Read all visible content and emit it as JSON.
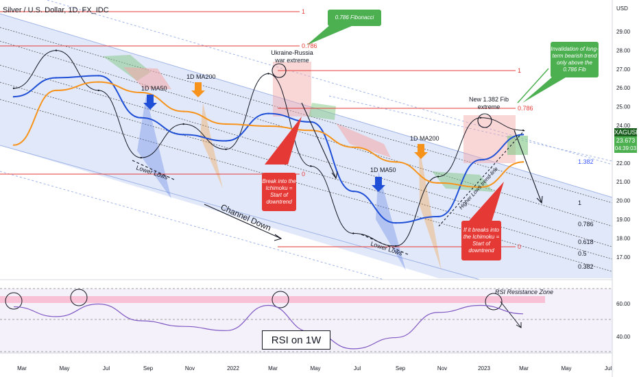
{
  "header": {
    "title": "Silver / U.S. Dollar, 1D, FX_IDC"
  },
  "axis": {
    "currency": "USD",
    "price_ticks": [
      "29.00",
      "28.00",
      "27.00",
      "26.00",
      "25.00",
      "24.00",
      "23.00",
      "22.00",
      "21.00",
      "20.00",
      "19.00",
      "18.00",
      "17.00"
    ],
    "rsi_ticks": [
      "60.00",
      "40.00"
    ],
    "time_ticks": [
      "Mar",
      "May",
      "Jul",
      "Sep",
      "Nov",
      "2022",
      "Mar",
      "May",
      "Jul",
      "Sep",
      "Nov",
      "2023",
      "Mar",
      "May",
      "Jul"
    ]
  },
  "symbol_tag": {
    "symbol": "XAGUSD",
    "price": "23.673",
    "countdown": "04:39:03"
  },
  "fib_right": {
    "f1": "1",
    "f0786": "0.786",
    "f0618": "0.618",
    "f05": "0.5",
    "f0382": "0.382",
    "ext1382": "1.382"
  },
  "fib_upper": {
    "one": "1",
    "f0786": "0.786",
    "f0786b": "0.786",
    "one_b": "1",
    "zero_a": "0",
    "zero_b": "0"
  },
  "annotations": {
    "ma50_a": "1D MA50",
    "ma200_a": "1D MA200",
    "ma50_b": "1D MA50",
    "ma200_b": "1D MA200",
    "ukraine": "Ukraine-Russia\nwar extreme",
    "fib_ext": "New 1.382 Fib\nextreme",
    "lower_lows_a": "Lower Lows",
    "lower_lows_b": "Lower Lows",
    "channel_down": "Channel Down",
    "higher_lows": "Higher Lows trend-line",
    "rsi_resistance": "RSI Resistance Zone",
    "rsi_on": "RSI on 1W"
  },
  "callouts": {
    "fib0786": "0.786 Fibonacci",
    "invalidation": "Invalidation of long-term bearish trend only above the 0.786 Fib",
    "break_a": "Break into the Ichimoku = Start of downtrend",
    "break_b": "If it breaks into the Ichimoku = Start of downtrend"
  },
  "colors": {
    "price": "#131722",
    "ma50": "#1e4fd6",
    "ma200": "#f7931a",
    "channel": "#c9d6f5",
    "fib_line": "#e53935",
    "green": "#4caf50",
    "red": "#e53935",
    "rsi": "#7e57c2"
  },
  "chart_data": {
    "type": "line",
    "title": "Silver / U.S. Dollar, 1D, FX_IDC",
    "ylabel": "USD",
    "ylim": [
      16.6,
      29.9
    ],
    "x": [
      "2021-03",
      "2021-05",
      "2021-07",
      "2021-09",
      "2021-11",
      "2022-01",
      "2022-03",
      "2022-05",
      "2022-07",
      "2022-09",
      "2022-11",
      "2023-01",
      "2023-03"
    ],
    "series": [
      {
        "name": "XAGUSD",
        "values": [
          25.7,
          27.5,
          25.6,
          22.4,
          24.0,
          22.8,
          26.4,
          22.0,
          18.8,
          18.2,
          21.5,
          24.3,
          23.7
        ]
      },
      {
        "name": "1D MA50",
        "values": [
          25.3,
          26.2,
          26.3,
          24.3,
          23.5,
          23.2,
          24.5,
          24.1,
          20.8,
          19.3,
          19.6,
          22.3,
          23.5
        ]
      },
      {
        "name": "1D MA200",
        "values": [
          23.0,
          25.6,
          26.0,
          25.5,
          24.6,
          24.0,
          23.9,
          23.7,
          22.9,
          22.2,
          21.2,
          21.0,
          22.2
        ]
      }
    ],
    "fib_levels": {
      "1": 20.0,
      "0.786": 19.08,
      "0.618": 18.04,
      "0.5": 17.42,
      "0.382": 16.8,
      "1.382": 22.3
    },
    "rsi": {
      "ylim": [
        30,
        75
      ],
      "resistance_zone": [
        61,
        64
      ],
      "values": [
        62,
        55,
        64,
        52,
        48,
        45,
        63,
        44,
        32,
        40,
        58,
        63,
        57
      ]
    }
  }
}
